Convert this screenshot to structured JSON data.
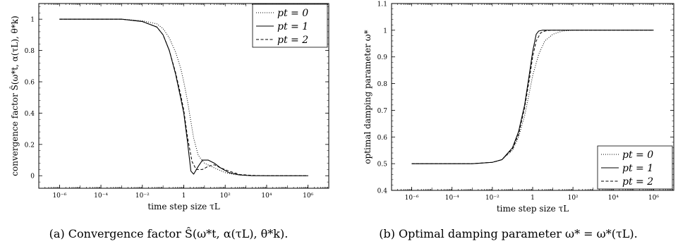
{
  "captions": {
    "a": "(a) Convergence factor Ŝ(ω*t, α(τL), θ*k).",
    "b": "(b) Optimal damping parameter ω* = ω*(τL)."
  },
  "chart_data": [
    {
      "type": "line",
      "id": "a",
      "xlabel": "time step size τL",
      "ylabel": "convergence factor Ŝ(ω*t, α(τL), θ*k)",
      "xscale": "log",
      "xlim": [
        1e-07,
        10000000.0
      ],
      "ylim": [
        -0.08,
        1.1
      ],
      "x_ticks": [
        1e-06,
        0.0001,
        0.01,
        1,
        100.0,
        10000.0,
        1000000.0
      ],
      "x_tick_labels": [
        "10⁻⁶",
        "10⁻⁴",
        "10⁻²",
        "1",
        "10²",
        "10⁴",
        "10⁶"
      ],
      "y_ticks": [
        0,
        0.2,
        0.4,
        0.6,
        0.8,
        1
      ],
      "y_tick_labels": [
        "0",
        "0.2",
        "0.4",
        "0.6",
        "0.8",
        "1"
      ],
      "legend_position": "top-right",
      "series": [
        {
          "name": "pt = 0",
          "style": "dotted",
          "x": [
            1e-06,
            0.001,
            0.01,
            0.05,
            0.1,
            0.2,
            0.4,
            0.7,
            1,
            1.5,
            2,
            3,
            5,
            10,
            30,
            100,
            300,
            1000,
            10000,
            1000000.0
          ],
          "y": [
            1,
            1,
            0.99,
            0.97,
            0.94,
            0.88,
            0.79,
            0.69,
            0.6,
            0.48,
            0.38,
            0.24,
            0.13,
            0.08,
            0.05,
            0.02,
            0.007,
            0.002,
            0,
            0
          ]
        },
        {
          "name": "pt = 1",
          "style": "solid",
          "x": [
            1e-06,
            0.001,
            0.01,
            0.05,
            0.1,
            0.2,
            0.4,
            0.7,
            1,
            1.5,
            2.2,
            3,
            5,
            8,
            15,
            30,
            60,
            150,
            500,
            2000,
            10000,
            1000000.0
          ],
          "y": [
            1,
            1,
            0.985,
            0.95,
            0.9,
            0.8,
            0.65,
            0.5,
            0.4,
            0.22,
            0.03,
            0.01,
            0.06,
            0.1,
            0.1,
            0.08,
            0.05,
            0.02,
            0.005,
            0,
            0,
            0
          ]
        },
        {
          "name": "pt = 2",
          "style": "dashed",
          "x": [
            1e-06,
            0.001,
            0.01,
            0.05,
            0.1,
            0.2,
            0.4,
            0.7,
            1,
            1.5,
            2.5,
            4,
            8,
            15,
            30,
            60,
            150,
            500,
            2000,
            10000,
            1000000.0
          ],
          "y": [
            1,
            1,
            0.985,
            0.95,
            0.9,
            0.8,
            0.66,
            0.52,
            0.42,
            0.25,
            0.09,
            0.04,
            0.04,
            0.06,
            0.07,
            0.05,
            0.03,
            0.008,
            0.002,
            0,
            0
          ]
        }
      ]
    },
    {
      "type": "line",
      "id": "b",
      "xlabel": "time step size τL",
      "ylabel": "optimal damping parameter ω*",
      "xscale": "log",
      "xlim": [
        1e-07,
        10000000.0
      ],
      "ylim": [
        0.4,
        1.1
      ],
      "x_ticks": [
        1e-06,
        0.0001,
        0.01,
        1,
        100.0,
        10000.0,
        1000000.0
      ],
      "x_tick_labels": [
        "10⁻⁶",
        "10⁻⁴",
        "10⁻²",
        "1",
        "10²",
        "10⁴",
        "10⁶"
      ],
      "y_ticks": [
        0.4,
        0.5,
        0.6,
        0.7,
        0.8,
        0.9,
        1,
        1.1
      ],
      "y_tick_labels": [
        "0.4",
        "0.5",
        "0.6",
        "0.7",
        "0.8",
        "0.9",
        "1",
        "1.1"
      ],
      "legend_position": "bottom-right",
      "series": [
        {
          "name": "pt = 0",
          "style": "dotted",
          "x": [
            1e-06,
            0.001,
            0.01,
            0.03,
            0.1,
            0.2,
            0.4,
            0.7,
            1,
            2,
            4,
            10,
            30,
            100,
            1000,
            1000000.0
          ],
          "y": [
            0.5,
            0.5,
            0.505,
            0.515,
            0.55,
            0.6,
            0.68,
            0.77,
            0.83,
            0.91,
            0.96,
            0.985,
            0.997,
            1,
            1,
            1
          ]
        },
        {
          "name": "pt = 1",
          "style": "solid",
          "x": [
            1e-06,
            0.001,
            0.01,
            0.03,
            0.1,
            0.2,
            0.4,
            0.7,
            1,
            1.5,
            2,
            3,
            5,
            1000000.0
          ],
          "y": [
            0.5,
            0.5,
            0.505,
            0.515,
            0.56,
            0.62,
            0.72,
            0.84,
            0.92,
            0.985,
            0.997,
            1,
            1,
            1
          ]
        },
        {
          "name": "pt = 2",
          "style": "dashed",
          "x": [
            1e-06,
            0.001,
            0.01,
            0.03,
            0.1,
            0.2,
            0.4,
            0.7,
            1,
            1.5,
            2.5,
            4,
            8,
            1000000.0
          ],
          "y": [
            0.5,
            0.5,
            0.505,
            0.515,
            0.555,
            0.61,
            0.71,
            0.82,
            0.9,
            0.96,
            0.99,
            0.997,
            1,
            1
          ]
        }
      ]
    }
  ]
}
